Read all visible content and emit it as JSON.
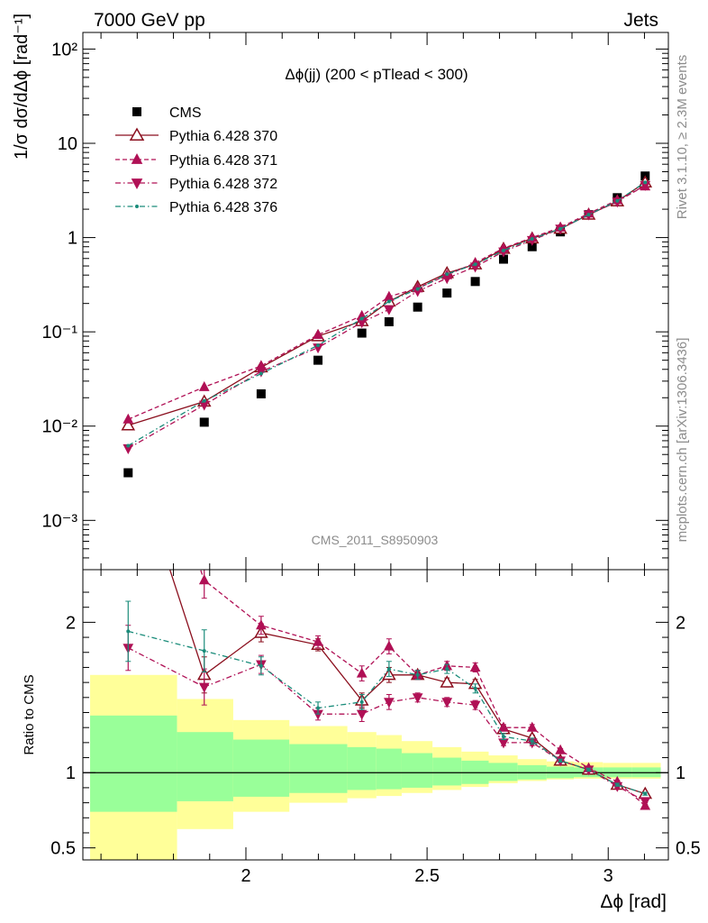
{
  "header": {
    "left": "7000 GeV pp",
    "right": "Jets"
  },
  "side_labels": {
    "rivet": "Rivet 3.1.10, ≥ 2.3M events",
    "mcplots": "mcplots.cern.ch [arXiv:1306.3436]"
  },
  "watermark": "CMS_2011_S8950903",
  "chart_data": [
    {
      "type": "line",
      "panel": "main",
      "title": "Δϕ(jj) (200 < pTlead <  300)",
      "ylabel": "1/σ dσ/dΔϕ [rad⁻¹]",
      "yscale": "log",
      "xlim": [
        1.55,
        3.166
      ],
      "ylim": [
        0.0003,
        150
      ],
      "y_ticks": [
        "10⁻³",
        "10⁻²",
        "10⁻¹",
        "1",
        "10",
        "10²"
      ],
      "legend_position": "top-left",
      "x": [
        1.675,
        1.885,
        2.042,
        2.199,
        2.32,
        2.395,
        2.474,
        2.555,
        2.633,
        2.711,
        2.79,
        2.868,
        2.946,
        3.025,
        3.102
      ],
      "series": [
        {
          "name": "CMS",
          "marker": "filled-square",
          "color": "#000000",
          "values": [
            0.0032,
            0.011,
            0.022,
            0.05,
            0.097,
            0.128,
            0.183,
            0.258,
            0.342,
            0.59,
            0.8,
            1.15,
            1.75,
            2.65,
            4.5
          ]
        },
        {
          "name": "Pythia 6.428 370",
          "marker": "open-triangle-up",
          "color": "#8b0f1e",
          "dash": "solid",
          "values": [
            0.0102,
            0.0182,
            0.042,
            0.09,
            0.13,
            0.21,
            0.3,
            0.42,
            0.52,
            0.76,
            0.98,
            1.24,
            1.75,
            2.42,
            3.85
          ]
        },
        {
          "name": "Pythia 6.428 371",
          "marker": "filled-triangle-up",
          "color": "#b01055",
          "dash": "dashed",
          "values": [
            0.0118,
            0.026,
            0.0435,
            0.093,
            0.148,
            0.236,
            0.29,
            0.4,
            0.54,
            0.77,
            1.0,
            1.28,
            1.8,
            2.5,
            3.5
          ]
        },
        {
          "name": "Pythia 6.428 372",
          "marker": "filled-triangle-down",
          "color": "#b01055",
          "dash": "dash-dot",
          "values": [
            0.0058,
            0.0168,
            0.038,
            0.068,
            0.126,
            0.173,
            0.27,
            0.37,
            0.49,
            0.71,
            0.94,
            1.24,
            1.75,
            2.4,
            3.6
          ]
        },
        {
          "name": "Pythia 6.428 376",
          "marker": "dot",
          "color": "#1a8c7a",
          "dash": "dash-dot",
          "values": [
            0.0062,
            0.0185,
            0.036,
            0.072,
            0.138,
            0.21,
            0.285,
            0.41,
            0.52,
            0.73,
            0.97,
            1.24,
            1.75,
            2.45,
            3.85
          ]
        }
      ]
    },
    {
      "type": "line",
      "panel": "ratio",
      "ylabel": "Ratio to CMS",
      "xlabel": "Δϕ [rad]",
      "xlim": [
        1.55,
        3.166
      ],
      "ylim": [
        0.42,
        2.35
      ],
      "y_ticks": [
        "0.5",
        "1",
        "2"
      ],
      "x_ticks": [
        "2",
        "2.5",
        "3"
      ],
      "reference_line": 1.0,
      "bands": {
        "edges": [
          1.57,
          1.81,
          1.965,
          2.12,
          2.28,
          2.36,
          2.43,
          2.515,
          2.595,
          2.67,
          2.75,
          2.83,
          2.905,
          2.985,
          3.065,
          3.145
        ],
        "yellow_lo": [
          0.42,
          0.625,
          0.74,
          0.8,
          0.83,
          0.845,
          0.865,
          0.885,
          0.905,
          0.93,
          0.945,
          0.955,
          0.96,
          0.96,
          0.96
        ],
        "yellow_hi": [
          1.65,
          1.49,
          1.35,
          1.31,
          1.27,
          1.25,
          1.21,
          1.17,
          1.14,
          1.115,
          1.09,
          1.075,
          1.07,
          1.065,
          1.065
        ],
        "green_lo": [
          0.74,
          0.81,
          0.84,
          0.865,
          0.885,
          0.89,
          0.9,
          0.915,
          0.925,
          0.945,
          0.955,
          0.963,
          0.97,
          0.97,
          0.97
        ],
        "green_hi": [
          1.38,
          1.27,
          1.22,
          1.19,
          1.17,
          1.16,
          1.13,
          1.1,
          1.08,
          1.065,
          1.05,
          1.04,
          1.035,
          1.035,
          1.035
        ],
        "green_color": "#99ff99",
        "yellow_color": "#ffff99"
      },
      "x": [
        1.675,
        1.885,
        2.042,
        2.199,
        2.32,
        2.395,
        2.474,
        2.555,
        2.633,
        2.711,
        2.79,
        2.868,
        2.946,
        3.025,
        3.102
      ],
      "series": [
        {
          "name": "Pythia 6.428 370",
          "marker": "open-triangle-up",
          "color": "#8b0f1e",
          "dash": "solid",
          "values": [
            3.2,
            1.65,
            1.93,
            1.85,
            1.48,
            1.65,
            1.65,
            1.6,
            1.59,
            1.29,
            1.23,
            1.08,
            1.02,
            0.92,
            0.86
          ],
          "errors": [
            0,
            0.12,
            0.06,
            0.04,
            0.05,
            0.05,
            0.03,
            0.03,
            0.03,
            0.02,
            0.02,
            0.01,
            0.01,
            0.01,
            0.01
          ]
        },
        {
          "name": "Pythia 6.428 371",
          "marker": "filled-triangle-up",
          "color": "#b01055",
          "dash": "dashed",
          "values": [
            3.7,
            2.28,
            1.98,
            1.87,
            1.66,
            1.84,
            1.65,
            1.71,
            1.7,
            1.3,
            1.3,
            1.15,
            1.03,
            0.94,
            0.78
          ],
          "errors": [
            0,
            0.12,
            0.06,
            0.04,
            0.05,
            0.05,
            0.03,
            0.03,
            0.03,
            0.02,
            0.02,
            0.01,
            0.01,
            0.01,
            0.01
          ]
        },
        {
          "name": "Pythia 6.428 372",
          "marker": "filled-triangle-down",
          "color": "#b01055",
          "dash": "dash-dot",
          "values": [
            1.83,
            1.57,
            1.72,
            1.39,
            1.39,
            1.47,
            1.5,
            1.47,
            1.45,
            1.2,
            1.2,
            1.08,
            1.02,
            0.91,
            0.81
          ],
          "errors": [
            0.15,
            0.12,
            0.06,
            0.04,
            0.05,
            0.05,
            0.03,
            0.03,
            0.03,
            0.02,
            0.02,
            0.01,
            0.01,
            0.01,
            0.01
          ]
        },
        {
          "name": "Pythia 6.428 376",
          "marker": "dot",
          "color": "#1a8c7a",
          "dash": "dash-dot",
          "values": [
            1.94,
            1.81,
            1.71,
            1.43,
            1.47,
            1.69,
            1.65,
            1.69,
            1.56,
            1.24,
            1.21,
            1.08,
            1.02,
            0.92,
            0.86
          ],
          "errors": [
            0.2,
            0.14,
            0.06,
            0.04,
            0.05,
            0.05,
            0.03,
            0.03,
            0.03,
            0.02,
            0.02,
            0.01,
            0.01,
            0.01,
            0.01
          ]
        }
      ]
    }
  ]
}
